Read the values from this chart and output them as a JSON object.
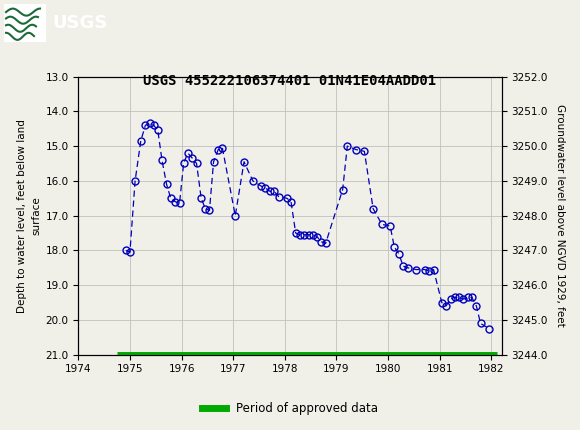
{
  "title": "USGS 455222106374401 01N41E04AADD01",
  "ylabel_left": "Depth to water level, feet below land\nsurface",
  "ylabel_right": "Groundwater level above NGVD 1929, feet",
  "ylim_left": [
    21.0,
    13.0
  ],
  "ylim_right": [
    3244.0,
    3252.0
  ],
  "xlim": [
    1974,
    1982.2
  ],
  "yticks_left": [
    13.0,
    14.0,
    15.0,
    16.0,
    17.0,
    18.0,
    19.0,
    20.0,
    21.0
  ],
  "yticks_right": [
    3244.0,
    3245.0,
    3246.0,
    3247.0,
    3248.0,
    3249.0,
    3250.0,
    3251.0,
    3252.0
  ],
  "xticks": [
    1974,
    1975,
    1976,
    1977,
    1978,
    1979,
    1980,
    1981,
    1982
  ],
  "header_color": "#1b6b3a",
  "line_color": "#0000bb",
  "marker_edgecolor": "#0000bb",
  "grid_color": "#c0c0c0",
  "approved_bar_color": "#00aa00",
  "background_color": "#f0efe8",
  "plot_bg_color": "#f0efe8",
  "data_x": [
    1974.92,
    1975.0,
    1975.1,
    1975.21,
    1975.3,
    1975.38,
    1975.46,
    1975.54,
    1975.62,
    1975.71,
    1975.79,
    1975.88,
    1975.96,
    1976.04,
    1976.12,
    1976.21,
    1976.29,
    1976.38,
    1976.46,
    1976.54,
    1976.62,
    1976.71,
    1976.79,
    1977.04,
    1977.21,
    1977.38,
    1977.54,
    1977.62,
    1977.71,
    1977.79,
    1977.88,
    1978.04,
    1978.12,
    1978.21,
    1978.29,
    1978.38,
    1978.46,
    1978.54,
    1978.62,
    1978.71,
    1978.79,
    1979.12,
    1979.21,
    1979.38,
    1979.54,
    1979.71,
    1979.88,
    1980.04,
    1980.12,
    1980.21,
    1980.29,
    1980.38,
    1980.54,
    1980.71,
    1980.79,
    1980.88,
    1981.04,
    1981.12,
    1981.21,
    1981.29,
    1981.38,
    1981.46,
    1981.54,
    1981.62,
    1981.71,
    1981.79,
    1981.96
  ],
  "data_y": [
    18.0,
    18.05,
    16.0,
    14.85,
    14.4,
    14.35,
    14.4,
    14.55,
    15.4,
    16.1,
    16.5,
    16.6,
    16.65,
    15.5,
    15.2,
    15.35,
    15.5,
    16.5,
    16.8,
    16.85,
    15.45,
    15.1,
    15.05,
    17.0,
    15.45,
    16.0,
    16.15,
    16.2,
    16.3,
    16.3,
    16.45,
    16.5,
    16.6,
    17.5,
    17.55,
    17.55,
    17.55,
    17.55,
    17.6,
    17.75,
    17.8,
    16.25,
    15.0,
    15.1,
    15.15,
    16.8,
    17.25,
    17.3,
    17.9,
    18.1,
    18.45,
    18.5,
    18.55,
    18.55,
    18.6,
    18.55,
    19.5,
    19.6,
    19.4,
    19.35,
    19.35,
    19.4,
    19.35,
    19.35,
    19.6,
    20.1,
    20.25
  ]
}
